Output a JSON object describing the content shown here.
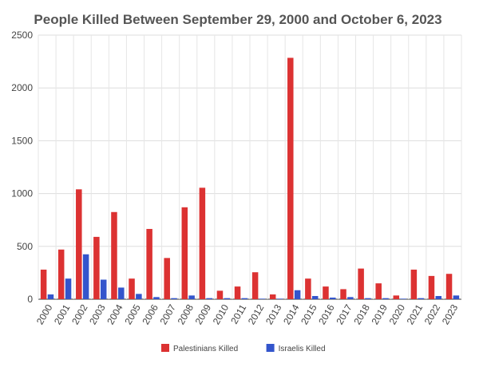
{
  "chart_data": {
    "type": "bar",
    "title": "People Killed Between September 29, 2000 and October 6, 2023",
    "categories": [
      "2000",
      "2001",
      "2002",
      "2003",
      "2004",
      "2005",
      "2006",
      "2007",
      "2008",
      "2009",
      "2010",
      "2011",
      "2012",
      "2013",
      "2014",
      "2015",
      "2016",
      "2017",
      "2018",
      "2019",
      "2020",
      "2021",
      "2022",
      "2023"
    ],
    "series": [
      {
        "name": "Palestinians Killed",
        "color": "#dc3232",
        "values": [
          280,
          470,
          1040,
          590,
          825,
          195,
          665,
          390,
          870,
          1055,
          80,
          120,
          255,
          45,
          2285,
          195,
          120,
          95,
          290,
          150,
          35,
          280,
          220,
          240
        ]
      },
      {
        "name": "Israelis Killed",
        "color": "#3355cc",
        "values": [
          45,
          195,
          425,
          185,
          110,
          50,
          20,
          10,
          35,
          10,
          10,
          10,
          5,
          5,
          85,
          30,
          15,
          20,
          10,
          10,
          5,
          10,
          30,
          35
        ]
      }
    ],
    "xlabel": "",
    "ylabel": "",
    "ylim": [
      0,
      2500
    ],
    "yticks": [
      0,
      500,
      1000,
      1500,
      2000,
      2500
    ],
    "grid": true,
    "legend_position": "bottom"
  }
}
